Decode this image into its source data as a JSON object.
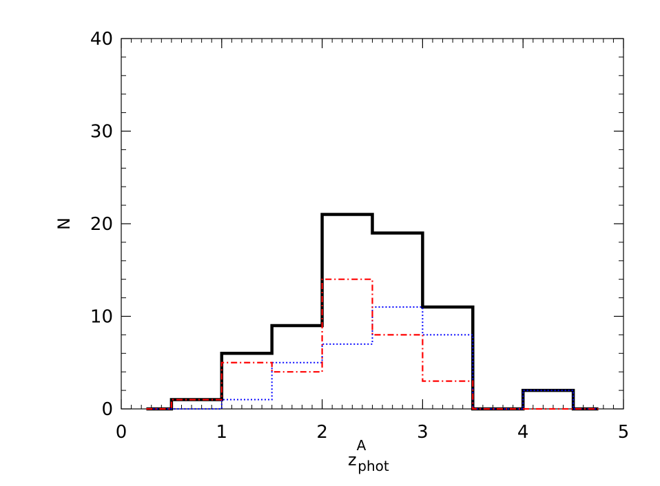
{
  "chart_data": {
    "type": "line",
    "title": "",
    "xlabel": {
      "main": "z",
      "sup": "A",
      "sub": "phot"
    },
    "ylabel": "N",
    "xlim": [
      0,
      5
    ],
    "ylim": [
      0,
      40
    ],
    "xticks": [
      0,
      1,
      2,
      3,
      4,
      5
    ],
    "yticks": [
      0,
      10,
      20,
      30,
      40
    ],
    "x_minor_step": 0.1,
    "y_minor_step": 2,
    "grid": false,
    "legend": "none",
    "bin_edges": [
      0.25,
      0.5,
      1.0,
      1.5,
      2.0,
      2.5,
      3.0,
      3.5,
      4.0,
      4.5,
      4.75
    ],
    "series": [
      {
        "color": "#000000",
        "style": "solid",
        "values": [
          0,
          1,
          6,
          9,
          21,
          19,
          11,
          0,
          2,
          0
        ]
      },
      {
        "color": "#0000ff",
        "style": "dotted",
        "values": [
          0,
          0,
          1,
          5,
          7,
          11,
          8,
          0,
          2,
          0
        ]
      },
      {
        "color": "#ff0000",
        "style": "dash-dot",
        "values": [
          0,
          1,
          5,
          4,
          14,
          8,
          3,
          0,
          0,
          0
        ]
      }
    ]
  }
}
